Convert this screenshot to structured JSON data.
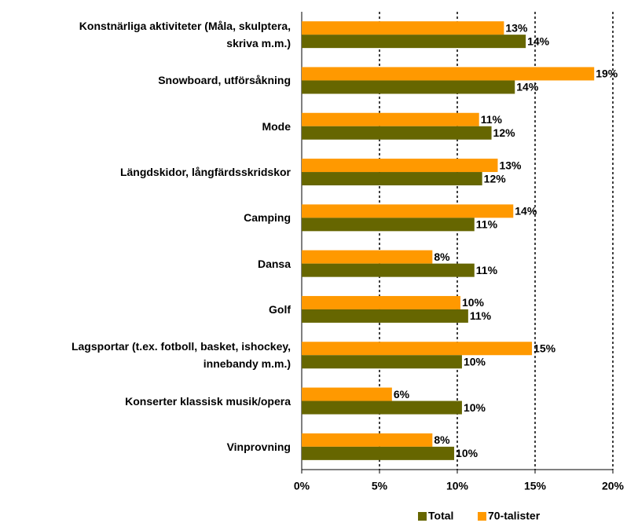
{
  "chart_data": {
    "type": "hbar",
    "categories": [
      "Konstnärliga aktiviteter (Måla, skulptera,\nskriva m.m.)",
      "Snowboard, utförsåkning",
      "Mode",
      "Längdskidor, långfärdsskridskor",
      "Camping",
      "Dansa",
      "Golf",
      "Lagsportar (t.ex. fotboll, basket, ishockey,\ninnebandy m.m.)",
      "Konserter klassisk musik/opera",
      "Vinprovning"
    ],
    "series": [
      {
        "name": "Total",
        "color": "#666600",
        "values": [
          14.4,
          13.7,
          12.2,
          11.6,
          11.1,
          11.1,
          10.7,
          10.3,
          10.3,
          9.8
        ],
        "value_labels": [
          "14%",
          "14%",
          "12%",
          "12%",
          "11%",
          "11%",
          "11%",
          "10%",
          "10%",
          "10%"
        ]
      },
      {
        "name": "70-talister",
        "color": "#ff9900",
        "values": [
          13.0,
          18.8,
          11.4,
          12.6,
          13.6,
          8.4,
          10.2,
          14.8,
          5.8,
          8.4
        ],
        "value_labels": [
          "13%",
          "19%",
          "11%",
          "13%",
          "14%",
          "8%",
          "10%",
          "15%",
          "6%",
          "8%"
        ]
      }
    ],
    "xlim": [
      0,
      20
    ],
    "xticks": [
      {
        "value": 0,
        "label": "0%"
      },
      {
        "value": 5,
        "label": "5%"
      },
      {
        "value": 10,
        "label": "10%"
      },
      {
        "value": 15,
        "label": "15%"
      },
      {
        "value": 20,
        "label": "20%"
      }
    ],
    "grid": true,
    "legend": "bottom"
  }
}
